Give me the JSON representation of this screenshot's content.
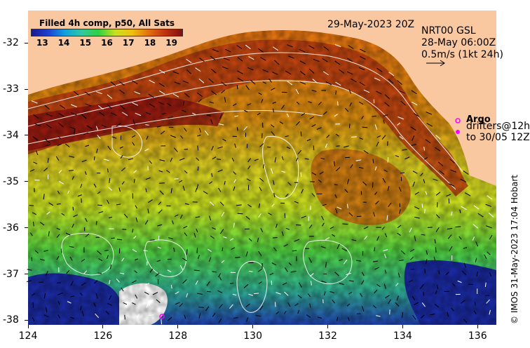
{
  "map": {
    "title": "Filled 4h comp, p50, All Sats",
    "date": "29-May-2023 20Z",
    "current_source": "NRT00 GSL",
    "current_time": "28-May 06:00Z",
    "scale_label": "0.5m/s (1kt 24h)",
    "argo_label": "Argo",
    "drifters_label": "drifters@12h",
    "drifters_to": "to 30/05 12Z",
    "credit": "© IMOS 31-May-2023 17:04 Hobart",
    "colorbar": {
      "ticks": [
        "13",
        "14",
        "15",
        "16",
        "17",
        "18",
        "19"
      ],
      "min": 12.5,
      "max": 19.5
    },
    "x_axis": {
      "ticks": [
        "124",
        "126",
        "128",
        "130",
        "132",
        "134",
        "136"
      ],
      "range": [
        124,
        136.5
      ]
    },
    "y_axis": {
      "ticks": [
        "-32",
        "-33",
        "-34",
        "-35",
        "-36",
        "-37",
        "-38"
      ],
      "range": [
        -38.1,
        -31.3
      ]
    },
    "colors": {
      "land": "#f9c8a0",
      "argo_marker": "#ff00ff",
      "contour": "#ffffff"
    }
  }
}
